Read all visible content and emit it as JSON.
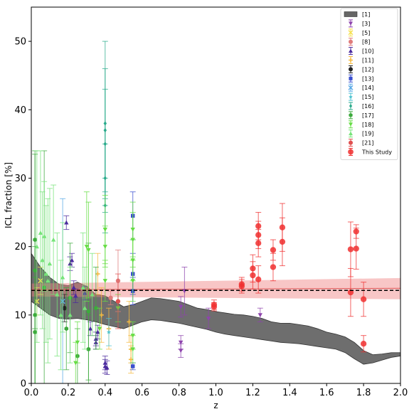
{
  "chart_data": {
    "type": "scatter",
    "xlabel": "z",
    "ylabel": "ICL fraction [%]",
    "xlim": [
      0.0,
      2.0
    ],
    "ylim": [
      0,
      55
    ],
    "xticks": [
      0.0,
      0.2,
      0.4,
      0.6,
      0.8,
      1.0,
      1.2,
      1.4,
      1.6,
      1.8,
      2.0
    ],
    "xtick_labels": [
      "0.0",
      "0.2",
      "0.4",
      "0.6",
      "0.8",
      "1.0",
      "1.2",
      "1.4",
      "1.6",
      "1.8",
      "2.0"
    ],
    "yticks": [
      0,
      10,
      20,
      30,
      40,
      50
    ],
    "ytick_labels": [
      "0",
      "10",
      "20",
      "30",
      "40",
      "50"
    ],
    "grid": false,
    "legend_position": "top-right",
    "reference_line": {
      "y": 13.6,
      "style": "dashed",
      "color": "#000000"
    },
    "trend_band": {
      "color": "#f08080",
      "x": [
        0.0,
        2.0
      ],
      "upper": [
        14.6,
        15.4
      ],
      "lower": [
        12.7,
        12.3
      ],
      "center": [
        13.7,
        13.9
      ]
    },
    "simulation_band": {
      "label": "[1]",
      "color": "#555555",
      "x": [
        0.0,
        0.05,
        0.1,
        0.15,
        0.2,
        0.25,
        0.3,
        0.35,
        0.4,
        0.45,
        0.5,
        0.55,
        0.6,
        0.65,
        0.7,
        0.75,
        0.8,
        0.85,
        0.9,
        0.95,
        1.0,
        1.05,
        1.1,
        1.15,
        1.2,
        1.25,
        1.3,
        1.35,
        1.4,
        1.45,
        1.5,
        1.55,
        1.6,
        1.65,
        1.7,
        1.75,
        1.8,
        1.85,
        1.9,
        1.95,
        2.0
      ],
      "upper": [
        19.0,
        17.0,
        15.5,
        14.5,
        14.3,
        14.8,
        14.2,
        13.0,
        12.8,
        12.0,
        11.2,
        11.5,
        12.0,
        12.5,
        12.4,
        12.2,
        12.0,
        11.5,
        11.0,
        10.8,
        10.5,
        10.3,
        10.1,
        10.0,
        9.8,
        9.5,
        9.0,
        8.8,
        8.8,
        8.6,
        8.4,
        8.0,
        7.5,
        7.2,
        6.8,
        6.0,
        4.8,
        4.2,
        4.3,
        4.5,
        4.5
      ],
      "lower": [
        12.0,
        11.0,
        10.0,
        9.5,
        9.4,
        9.5,
        9.3,
        9.0,
        8.6,
        8.3,
        8.0,
        8.5,
        9.0,
        9.3,
        9.2,
        9.0,
        8.8,
        8.5,
        8.2,
        7.9,
        7.5,
        7.2,
        7.0,
        6.8,
        6.6,
        6.4,
        6.2,
        6.0,
        5.9,
        5.8,
        5.6,
        5.4,
        5.2,
        5.0,
        4.5,
        3.6,
        2.8,
        3.0,
        3.4,
        3.8,
        4.0
      ]
    },
    "series": [
      {
        "name": "[3]",
        "color": "#8e44ad",
        "marker": "triangle-down",
        "points": [
          [
            0.81,
            11.2,
            1.5
          ],
          [
            0.81,
            4.8,
            1.0
          ],
          [
            0.81,
            6.0,
            1.0
          ],
          [
            0.83,
            13.5,
            3.5
          ],
          [
            0.96,
            9.5,
            1.5
          ],
          [
            1.24,
            10.0,
            1.0
          ]
        ]
      },
      {
        "name": "[5]",
        "color": "#f5e050",
        "marker": "x",
        "points": [
          [
            0.03,
            12.0,
            2.0
          ],
          [
            0.05,
            15.0,
            2.0
          ]
        ]
      },
      {
        "name": "[8]",
        "color": "#e07b7b",
        "marker": "circle",
        "points": [
          [
            0.47,
            15.0,
            4.5
          ],
          [
            0.43,
            12.5,
            1.0
          ]
        ]
      },
      {
        "name": "[10]",
        "color": "#4b2a9e",
        "marker": "triangle-up",
        "points": [
          [
            0.19,
            23.5,
            1.0
          ],
          [
            0.21,
            17.5,
            1.0
          ],
          [
            0.22,
            18.0,
            1.0
          ],
          [
            0.23,
            14.0,
            1.0
          ],
          [
            0.24,
            12.8,
            1.0
          ],
          [
            0.29,
            13.2,
            1.0
          ],
          [
            0.32,
            8.0,
            1.0
          ],
          [
            0.35,
            6.5,
            1.0
          ],
          [
            0.35,
            6.0,
            1.0
          ],
          [
            0.36,
            7.5,
            1.0
          ],
          [
            0.4,
            3.0,
            1.0
          ],
          [
            0.4,
            2.5,
            1.0
          ],
          [
            0.41,
            2.3,
            1.0
          ]
        ]
      },
      {
        "name": "[11]",
        "color": "#f5b940",
        "marker": "plus",
        "points": [
          [
            0.36,
            16.0,
            3.0
          ],
          [
            0.38,
            10.0,
            4.0
          ],
          [
            0.42,
            8.0,
            3.0
          ],
          [
            0.53,
            9.0,
            3.0
          ],
          [
            0.54,
            5.0,
            2.0
          ],
          [
            0.54,
            3.5,
            2.0
          ]
        ]
      },
      {
        "name": "[12]",
        "color": "#222222",
        "marker": "circle",
        "points": [
          [
            0.18,
            11.0,
            2.0
          ]
        ]
      },
      {
        "name": "[13]",
        "color": "#3a4fcf",
        "marker": "square",
        "points": [
          [
            0.55,
            24.5,
            3.5
          ],
          [
            0.55,
            16.0,
            3.0
          ],
          [
            0.55,
            13.5,
            2.0
          ],
          [
            0.55,
            2.5,
            0.5
          ]
        ]
      },
      {
        "name": "[14]",
        "color": "#5aa9e6",
        "marker": "x",
        "points": [
          [
            0.17,
            12.0,
            15.0
          ]
        ]
      },
      {
        "name": "[15]",
        "color": "#4fc3d0",
        "marker": "star",
        "points": [
          [
            0.42,
            7.5,
            2.0
          ]
        ]
      },
      {
        "name": "[16]",
        "color": "#2bab8c",
        "marker": "diamond",
        "points": [
          [
            0.4,
            38.0,
            12.0
          ],
          [
            0.4,
            37.0,
            9.0
          ],
          [
            0.4,
            35.0,
            8.0
          ],
          [
            0.4,
            30.0,
            5.0
          ],
          [
            0.4,
            26.0,
            4.0
          ]
        ]
      },
      {
        "name": "[17]",
        "color": "#3daa3d",
        "marker": "hexagon",
        "points": [
          [
            0.02,
            21.0,
            13.0
          ],
          [
            0.02,
            16.5,
            17.0
          ],
          [
            0.02,
            10.0,
            10.0
          ],
          [
            0.02,
            7.5,
            8.0
          ],
          [
            0.07,
            14.0,
            20.0
          ],
          [
            0.19,
            8.0,
            6.0
          ],
          [
            0.21,
            12.5,
            8.0
          ],
          [
            0.25,
            4.0,
            4.0
          ],
          [
            0.31,
            10.5,
            10.0
          ],
          [
            0.31,
            5.0,
            5.0
          ],
          [
            0.35,
            11.0,
            6.0
          ]
        ]
      },
      {
        "name": "[18]",
        "color": "#66dd44",
        "marker": "triangle-down",
        "points": [
          [
            0.3,
            20.0,
            8.0
          ],
          [
            0.31,
            19.5,
            7.0
          ],
          [
            0.4,
            22.5,
            5.0
          ],
          [
            0.4,
            20.0,
            3.0
          ],
          [
            0.4,
            15.0,
            3.0
          ],
          [
            0.47,
            11.0,
            2.0
          ],
          [
            0.55,
            22.5,
            4.0
          ],
          [
            0.55,
            21.0,
            4.0
          ],
          [
            0.55,
            18.0,
            3.0
          ],
          [
            0.55,
            15.0,
            3.0
          ],
          [
            0.55,
            7.0,
            2.0
          ],
          [
            0.55,
            5.0,
            2.0
          ],
          [
            0.37,
            8.0,
            3.0
          ],
          [
            0.25,
            6.0,
            3.0
          ],
          [
            0.24,
            3.0,
            3.0
          ]
        ]
      },
      {
        "name": "[19]",
        "color": "#77e47a",
        "marker": "triangle-up",
        "points": [
          [
            0.03,
            20.0,
            14.0
          ],
          [
            0.05,
            22.0,
            12.0
          ],
          [
            0.06,
            18.0,
            10.0
          ],
          [
            0.07,
            21.5,
            8.0
          ],
          [
            0.08,
            16.0,
            10.0
          ],
          [
            0.09,
            15.0,
            12.0
          ],
          [
            0.1,
            17.5,
            11.0
          ],
          [
            0.12,
            21.0,
            8.0
          ],
          [
            0.14,
            13.0,
            9.0
          ],
          [
            0.16,
            10.0,
            8.0
          ],
          [
            0.17,
            15.5,
            8.0
          ],
          [
            0.21,
            10.0,
            7.0
          ],
          [
            0.28,
            14.0,
            8.0
          ],
          [
            0.29,
            11.0,
            6.0
          ],
          [
            0.33,
            13.0,
            6.0
          ]
        ]
      },
      {
        "name": "[21]",
        "color": "#e05050",
        "marker": "circle",
        "points": [
          [
            0.47,
            12.0,
            4.0
          ]
        ]
      },
      {
        "name": "This Study",
        "color": "#f03030",
        "marker": "circle-large",
        "points": [
          [
            0.99,
            11.5,
            0.7
          ],
          [
            0.99,
            11.2,
            0.6
          ],
          [
            1.14,
            14.5,
            1.0
          ],
          [
            1.14,
            14.2,
            1.0
          ],
          [
            1.2,
            16.8,
            2.0
          ],
          [
            1.2,
            15.8,
            2.0
          ],
          [
            1.23,
            23.0,
            2.0
          ],
          [
            1.23,
            21.7,
            2.0
          ],
          [
            1.23,
            20.5,
            2.0
          ],
          [
            1.23,
            15.2,
            2.0
          ],
          [
            1.31,
            19.5,
            1.5
          ],
          [
            1.31,
            17.0,
            2.0
          ],
          [
            1.36,
            22.8,
            3.5
          ],
          [
            1.36,
            20.7,
            3.5
          ],
          [
            1.73,
            19.6,
            4.0
          ],
          [
            1.73,
            13.3,
            3.5
          ],
          [
            1.76,
            22.2,
            1.0
          ],
          [
            1.76,
            19.7,
            3.0
          ],
          [
            1.8,
            12.3,
            2.5
          ],
          [
            1.8,
            5.8,
            1.2
          ]
        ]
      }
    ]
  }
}
